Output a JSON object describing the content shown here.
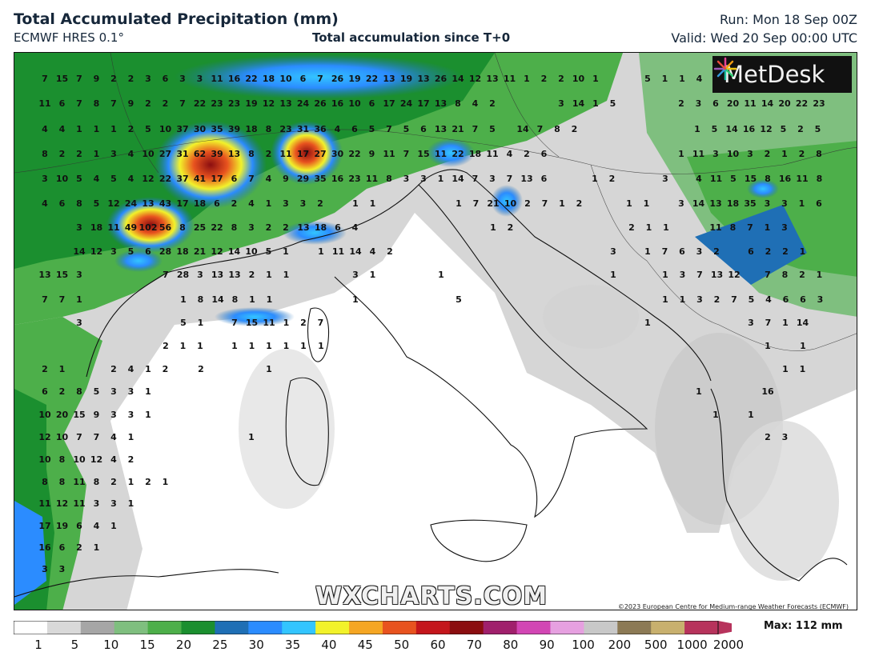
{
  "header": {
    "title": "Total Accumulated Precipitation (mm)",
    "model": "ECMWF HRES 0.1°",
    "subtitle": "Total accumulation since T+0",
    "run": "Run: Mon 18 Sep 00Z",
    "valid": "Valid: Wed 20 Sep 00:00 UTC"
  },
  "logo": {
    "text": "MetDesk",
    "icon": "metdesk-starburst-icon"
  },
  "watermark": "WXCHARTS.COM",
  "copyright": "©2023 European Centre for Medium-range Weather Forecasts (ECMWF)",
  "legend": {
    "ticks": [
      "1",
      "5",
      "10",
      "15",
      "20",
      "25",
      "30",
      "35",
      "40",
      "45",
      "50",
      "60",
      "70",
      "80",
      "90",
      "100",
      "200",
      "500",
      "1000",
      "2000"
    ],
    "max_label": "Max: 112 mm"
  },
  "map_values": [
    [
      "7 15 7 9 2 2 3 6 3 3 11 16 22 18 10 6 7 26 19 22 13 19 13 26 14 12 13 11 1 2 2 10 1",
      55,
      97
    ],
    [
      "5 1 1 4",
      808,
      97
    ],
    [
      "11 6 7 8 7 9 2 2 7 22 23 23 19 12 13 24 26 16 10 6 17 24 17 13 8 4 2",
      55,
      128
    ],
    [
      "3 14 1 5",
      700,
      128
    ],
    [
      "2 3 6 20 11 14 20 22 23",
      850,
      128
    ],
    [
      "4 4 1 1 1 2 5 10 37 30 35 39 18 8 23 31 36 4 6 5 7 5 6 13 21 7 5",
      55,
      160
    ],
    [
      "14 7 8 2",
      652,
      160
    ],
    [
      "1 5 14 16 12 5 2 5",
      870,
      160
    ],
    [
      "8 2 2 1 3 4 10 27 31 62 39 13 8 2 11 17 27 30 22 9 11 7 15 11 22 18 11 4 2 6",
      55,
      191
    ],
    [
      "1 11 3 10 3 2 1 2 8",
      850,
      191
    ],
    [
      "3 10 5 4 5 4 12 22 37 41 17 6 7 4 9 29 35 16 23 11 8 3 3 1 14 7 3 7 13 6",
      55,
      222
    ],
    [
      "1 2",
      742,
      222
    ],
    [
      "3",
      830,
      222
    ],
    [
      "4 11 5 15 8 16 11 8",
      872,
      222
    ],
    [
      "4 6 8 5 12 24 13 43 17 18 6 2 4 1 3 3 2",
      55,
      253
    ],
    [
      "1 1",
      443,
      253
    ],
    [
      "1 7 21 10 2 7 1 2",
      572,
      253
    ],
    [
      "1 1",
      785,
      253
    ],
    [
      "3 14 13 18 35 3 3 1 6",
      850,
      253
    ],
    [
      "3 18 11 49 102 56 8 25 22 8 3 2 2",
      98,
      283
    ],
    [
      "13 18 6 4",
      378,
      283
    ],
    [
      "1 2",
      615,
      283
    ],
    [
      "2 1 1",
      788,
      283
    ],
    [
      "11 8 7 1 3",
      893,
      283
    ],
    [
      "14 12 3 5 6 28 18 21 12 14 10 5 1",
      98,
      313
    ],
    [
      "1 11 14 4 2",
      400,
      313
    ],
    [
      "3",
      765,
      313
    ],
    [
      "1 7 6 3 2",
      808,
      313
    ],
    [
      "6 2 2 1",
      937,
      313
    ],
    [
      "13 15 3",
      55,
      342
    ],
    [
      "7 28 3 13 13 2 1 1",
      206,
      342
    ],
    [
      "3 1",
      443,
      342
    ],
    [
      "1",
      550,
      342
    ],
    [
      "1",
      765,
      342
    ],
    [
      "1 3 7 13 12",
      830,
      342
    ],
    [
      "7 8 2 1",
      958,
      342
    ],
    [
      "7 7 1",
      55,
      373
    ],
    [
      "1 8 14 8 1 1",
      228,
      373
    ],
    [
      "1",
      443,
      373
    ],
    [
      "5",
      572,
      373
    ],
    [
      "1 1 3 2 7 5 4 6 6 3",
      830,
      373
    ],
    [
      "3",
      98,
      402
    ],
    [
      "5 1",
      228,
      402
    ],
    [
      "7 15 11 1 2 7",
      292,
      402
    ],
    [
      "1",
      808,
      402
    ],
    [
      "3 7 1 14",
      937,
      402
    ],
    [
      "2 1 1",
      206,
      431
    ],
    [
      "1 1 1 1 1",
      292,
      431
    ],
    [
      "1",
      400,
      431
    ],
    [
      "1",
      958,
      431
    ],
    [
      "1",
      1002,
      431
    ],
    [
      "2 1",
      55,
      460
    ],
    [
      "2 4 1 2",
      141,
      460
    ],
    [
      "2",
      250,
      460
    ],
    [
      "1",
      335,
      460
    ],
    [
      "1 1",
      980,
      460
    ],
    [
      "6 2 8 5 3 3 1",
      55,
      488
    ],
    [
      "1",
      872,
      488
    ],
    [
      "16",
      958,
      488
    ],
    [
      "10 20 15 9 3 3 1",
      55,
      517
    ],
    [
      "1",
      893,
      517
    ],
    [
      "1",
      937,
      517
    ],
    [
      "12 10 7 7 4 1",
      55,
      545
    ],
    [
      "1",
      313,
      545
    ],
    [
      "2 3",
      958,
      545
    ],
    [
      "10 8 10 12 4 2",
      55,
      573
    ],
    [
      "8 8 11 8 2 1 2 1",
      55,
      601
    ],
    [
      "11 12 11 3 3 1",
      55,
      628
    ],
    [
      "17 19 6 4 1",
      55,
      656
    ],
    [
      "16 6 2 1",
      55,
      683
    ],
    [
      "3 3",
      55,
      710
    ]
  ],
  "colors": {
    "title": "#16273a",
    "scale": [
      "#ffffff",
      "#d9d9d9",
      "#a6a6a6",
      "#7fbf7f",
      "#4daf4a",
      "#1b8f2f",
      "#1f6fb5",
      "#2b8cff",
      "#33c5ff",
      "#f2f22a",
      "#f5a623",
      "#e8531f",
      "#c4161c",
      "#8b0e10",
      "#a0206c",
      "#d246b4",
      "#e6a0e0",
      "#c8c8c8",
      "#8c7a55",
      "#c8b06e",
      "#b7335c"
    ]
  }
}
